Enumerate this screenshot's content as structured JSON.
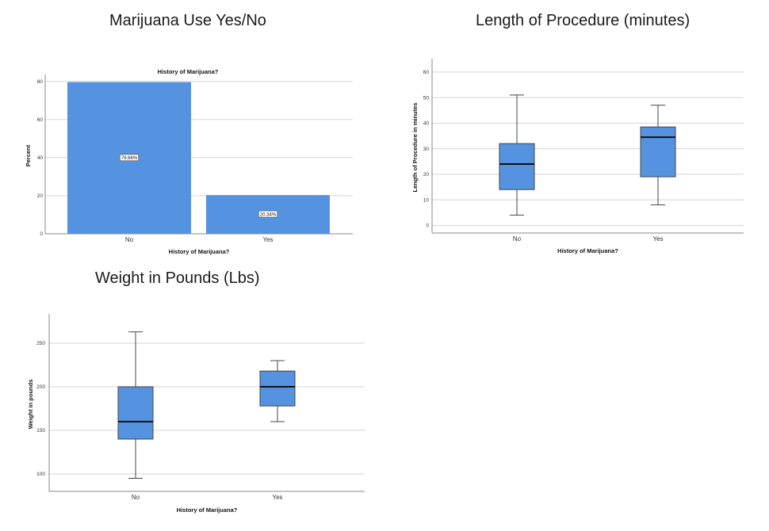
{
  "panels": {
    "marijuana_title": "Marijuana Use Yes/No",
    "procedure_title": "Length of Procedure (minutes)",
    "weight_title": "Weight in Pounds (Lbs)"
  },
  "chart_data": [
    {
      "type": "bar",
      "title": "History of Marijuana?",
      "xlabel": "History of Marijuana?",
      "ylabel": "Percent",
      "categories": [
        "No",
        "Yes"
      ],
      "values": [
        79.66,
        20.34
      ],
      "data_labels": [
        "79.66%",
        "20.34%"
      ],
      "yticks": [
        "0",
        "20",
        "40",
        "60",
        "80"
      ],
      "ylim": [
        0,
        82
      ],
      "grid": true,
      "color": "#5593e0"
    },
    {
      "type": "box",
      "title": "",
      "xlabel": "History of Marijuana?",
      "ylabel": "Length of Procedure in minutes",
      "categories": [
        "No",
        "Yes"
      ],
      "boxes": [
        {
          "min": 4,
          "q1": 14,
          "median": 24,
          "q3": 32,
          "max": 51
        },
        {
          "min": 8,
          "q1": 19,
          "median": 34.5,
          "q3": 38.5,
          "max": 47
        }
      ],
      "yticks": [
        "0",
        "10",
        "20",
        "30",
        "40",
        "50",
        "60"
      ],
      "ylim": [
        -3,
        64
      ],
      "grid": true,
      "color": "#5593e0"
    },
    {
      "type": "box",
      "title": "",
      "xlabel": "History of Marijuana?",
      "ylabel": "Weight in pounds",
      "categories": [
        "No",
        "Yes"
      ],
      "boxes": [
        {
          "min": 95,
          "q1": 140,
          "median": 160,
          "q3": 200,
          "max": 263
        },
        {
          "min": 160,
          "q1": 178,
          "median": 200,
          "q3": 218,
          "max": 230
        }
      ],
      "yticks": [
        "100",
        "150",
        "200",
        "250"
      ],
      "ylim": [
        80,
        280
      ],
      "grid": true,
      "color": "#5593e0"
    }
  ]
}
